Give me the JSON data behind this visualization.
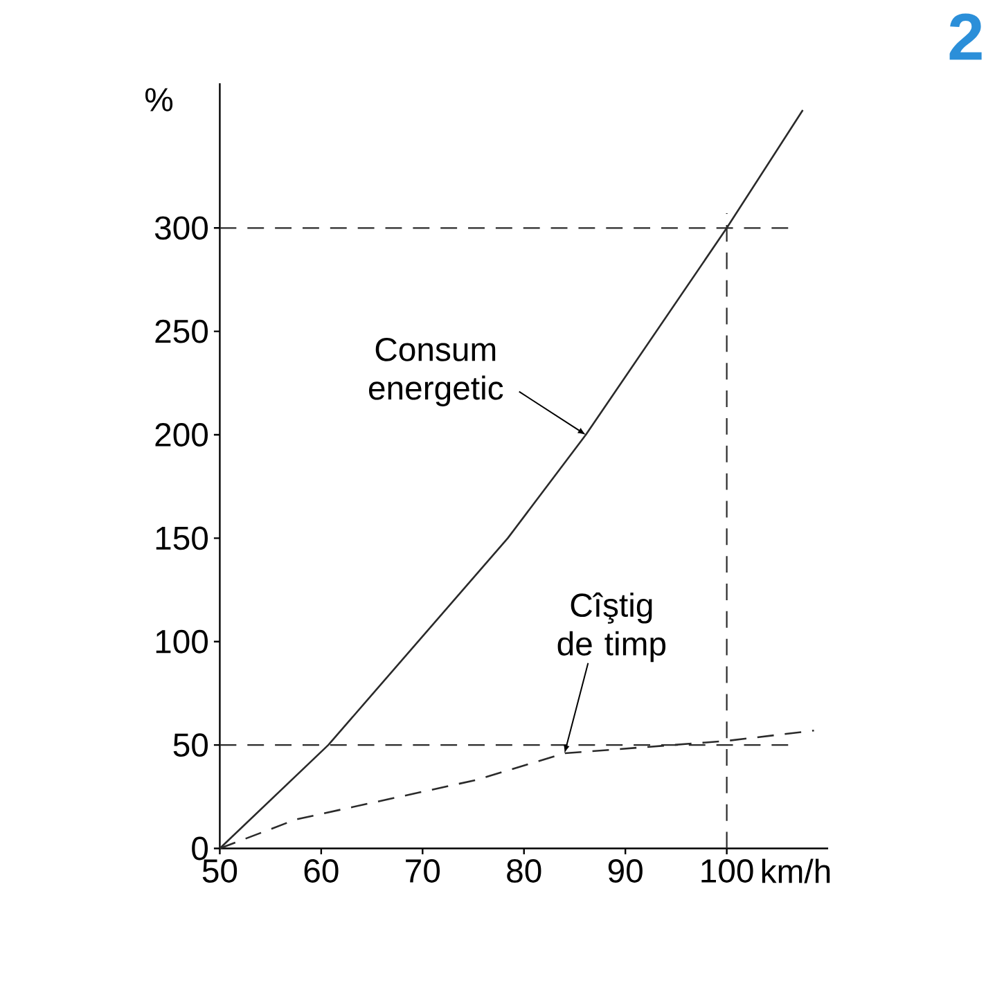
{
  "chart_data": {
    "type": "line",
    "xlabel": "km/h",
    "ylabel": "%",
    "xlim": [
      50,
      110
    ],
    "ylim": [
      0,
      370
    ],
    "xticks": [
      50,
      60,
      70,
      80,
      90,
      100
    ],
    "yticks": [
      0,
      50,
      100,
      150,
      200,
      250,
      300
    ],
    "series": [
      {
        "name": "Consum energetic",
        "color": "#2a2a2a",
        "line_style": "solid",
        "x": [
          50,
          60.7,
          78.4,
          86.1,
          100,
          107.5
        ],
        "values": [
          0,
          50,
          150,
          200,
          300,
          357
        ]
      },
      {
        "name": "Cîştig de timp",
        "color": "#2a2a2a",
        "line_style": "dashed",
        "x": [
          50,
          57.5,
          75.2,
          84,
          100,
          108.6
        ],
        "values": [
          0,
          14,
          33,
          46,
          52,
          57
        ]
      }
    ],
    "ref_lines": [
      {
        "axis": "y",
        "value": 300,
        "line_style": "dashed",
        "color": "#2a2a2a"
      },
      {
        "axis": "x",
        "value": 100,
        "line_style": "dashed",
        "color": "#2a2a2a"
      },
      {
        "axis": "y",
        "value": 50,
        "line_style": "dashed",
        "color": "#2a2a2a"
      }
    ],
    "annotations": [
      "2"
    ],
    "legend": false,
    "grid": false
  }
}
